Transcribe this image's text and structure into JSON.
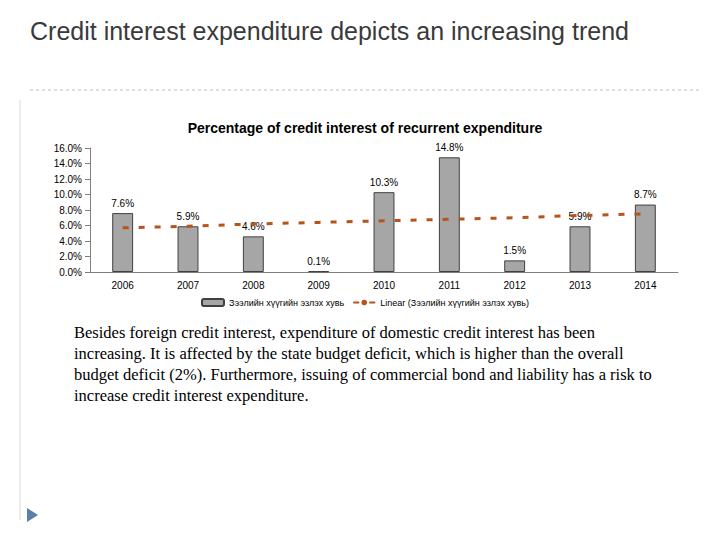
{
  "heading": "Credit interest expenditure depicts an increasing trend",
  "text": "Besides foreign credit interest, expenditure of domestic credit interest has been increasing. It is affected by the state budget deficit, which is higher than the overall budget deficit (2%). Furthermore, issuing of commercial bond and liability has a risk to increase credit interest expenditure.",
  "chart_data": {
    "type": "bar",
    "title": "Percentage of credit interest of recurrent expenditure",
    "categories": [
      "2006",
      "2007",
      "2008",
      "2009",
      "2010",
      "2011",
      "2012",
      "2013",
      "2014"
    ],
    "series": [
      {
        "name": "Зээлийн хүүгийн эзлэх хувь",
        "type": "bar",
        "color": "#a6a6a6",
        "values": [
          7.6,
          5.9,
          4.6,
          0.1,
          10.3,
          14.8,
          1.5,
          5.9,
          8.7
        ],
        "value_labels": [
          "7.6%",
          "5.9%",
          "4.6%",
          "0.1%",
          "10.3%",
          "14.8%",
          "1.5%",
          "5.9%",
          "8.7%"
        ]
      },
      {
        "name": "Linear (Зээлийн хүүгийн эзлэх хувь)",
        "type": "line",
        "color": "#b5541c",
        "line_style": "dashed",
        "marker": "none",
        "values": [
          5.7,
          5.9,
          6.2,
          6.4,
          6.6,
          6.8,
          7.0,
          7.3,
          7.5
        ]
      }
    ],
    "ylim": [
      0,
      16
    ],
    "yticks": [
      {
        "value": 0,
        "label": "0.0%"
      },
      {
        "value": 2,
        "label": "2.0%"
      },
      {
        "value": 4,
        "label": "4.0%"
      },
      {
        "value": 6,
        "label": "6.0%"
      },
      {
        "value": 8,
        "label": "8.0%"
      },
      {
        "value": 10,
        "label": "10.0%"
      },
      {
        "value": 12,
        "label": "12.0%"
      },
      {
        "value": 14,
        "label": "14.0%"
      },
      {
        "value": 16,
        "label": "16.0%"
      }
    ],
    "grid": false,
    "legend": "bottom",
    "data_labels": true
  }
}
